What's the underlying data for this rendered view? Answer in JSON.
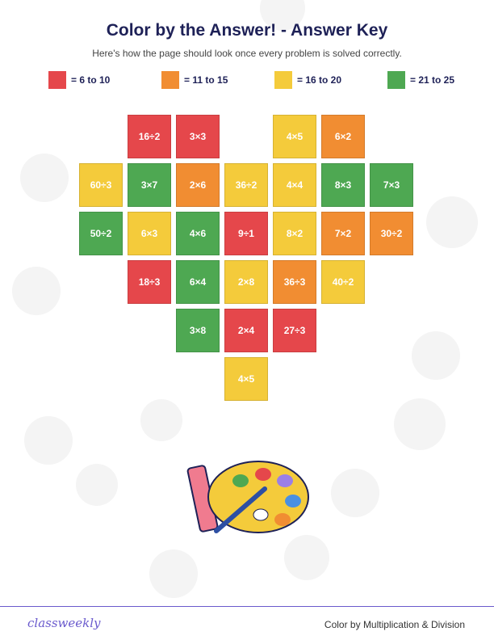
{
  "header": {
    "title": "Color by the Answer! - Answer Key",
    "subtitle": "Here's how the page should look once every problem is solved correctly."
  },
  "legend": [
    {
      "color": "#e5474b",
      "label": "= 6 to 10"
    },
    {
      "color": "#f18d32",
      "label": "= 11 to 15"
    },
    {
      "color": "#f4cb3b",
      "label": "= 16 to 20"
    },
    {
      "color": "#4ea852",
      "label": "= 21 to 25"
    }
  ],
  "grid": {
    "rows": [
      [
        null,
        {
          "text": "16÷2",
          "color": "#e5474b"
        },
        {
          "text": "3×3",
          "color": "#e5474b"
        },
        null,
        {
          "text": "4×5",
          "color": "#f4cb3b"
        },
        {
          "text": "6×2",
          "color": "#f18d32"
        },
        null
      ],
      [
        {
          "text": "60÷3",
          "color": "#f4cb3b"
        },
        {
          "text": "3×7",
          "color": "#4ea852"
        },
        {
          "text": "2×6",
          "color": "#f18d32"
        },
        {
          "text": "36÷2",
          "color": "#f4cb3b"
        },
        {
          "text": "4×4",
          "color": "#f4cb3b"
        },
        {
          "text": "8×3",
          "color": "#4ea852"
        },
        {
          "text": "7×3",
          "color": "#4ea852"
        }
      ],
      [
        {
          "text": "50÷2",
          "color": "#4ea852"
        },
        {
          "text": "6×3",
          "color": "#f4cb3b"
        },
        {
          "text": "4×6",
          "color": "#4ea852"
        },
        {
          "text": "9÷1",
          "color": "#e5474b"
        },
        {
          "text": "8×2",
          "color": "#f4cb3b"
        },
        {
          "text": "7×2",
          "color": "#f18d32"
        },
        {
          "text": "30÷2",
          "color": "#f18d32"
        }
      ],
      [
        null,
        {
          "text": "18÷3",
          "color": "#e5474b"
        },
        {
          "text": "6×4",
          "color": "#4ea852"
        },
        {
          "text": "2×8",
          "color": "#f4cb3b"
        },
        {
          "text": "36÷3",
          "color": "#f18d32"
        },
        {
          "text": "40÷2",
          "color": "#f4cb3b"
        },
        null
      ],
      [
        null,
        null,
        {
          "text": "3×8",
          "color": "#4ea852"
        },
        {
          "text": "2×4",
          "color": "#e5474b"
        },
        {
          "text": "27÷3",
          "color": "#e5474b"
        },
        null,
        null
      ],
      [
        null,
        null,
        null,
        {
          "text": "4×5",
          "color": "#f4cb3b"
        },
        null,
        null,
        null
      ]
    ]
  },
  "footer": {
    "brand": "classweekly",
    "topic": "Color by Multiplication & Division"
  }
}
